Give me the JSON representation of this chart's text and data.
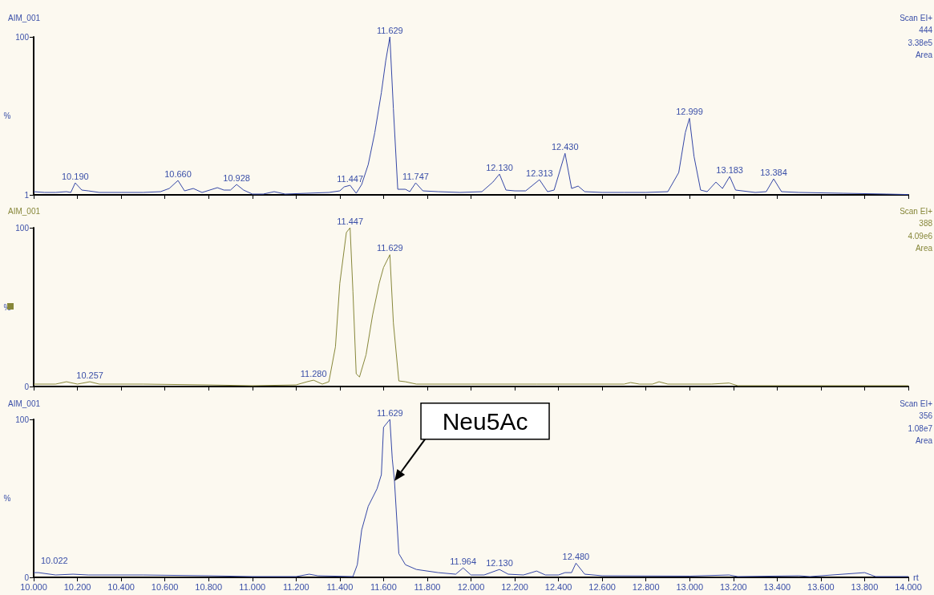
{
  "chart_data": [
    {
      "type": "line",
      "title": "AIM_001",
      "ylabel": "%",
      "annotations": [
        "Scan EI+",
        "444",
        "3.38e5",
        "Area",
        {
          "text": "10.190",
          "x": 10.19,
          "y": 8.5
        },
        {
          "text": "10.660",
          "x": 10.66,
          "y": 10
        },
        {
          "text": "10.928",
          "x": 10.928,
          "y": 7.5
        },
        {
          "text": "11.447",
          "x": 11.447,
          "y": 7
        },
        {
          "text": "11.629",
          "x": 11.629,
          "y": 100
        },
        {
          "text": "11.747",
          "x": 11.747,
          "y": 8.5
        },
        {
          "text": "12.130",
          "x": 12.13,
          "y": 14
        },
        {
          "text": "12.313",
          "x": 12.313,
          "y": 10.5
        },
        {
          "text": "12.430",
          "x": 12.43,
          "y": 27
        },
        {
          "text": "12.999",
          "x": 12.999,
          "y": 49
        },
        {
          "text": "13.183",
          "x": 13.183,
          "y": 12.5
        },
        {
          "text": "13.384",
          "x": 13.384,
          "y": 11
        }
      ],
      "xlim": [
        10,
        14
      ],
      "xticks": [
        {
          "value": 10,
          "label": null
        },
        {
          "value": 10.2,
          "label": null
        },
        {
          "value": 10.4,
          "label": null
        },
        {
          "value": 10.6,
          "label": null
        },
        {
          "value": 10.8,
          "label": null
        },
        {
          "value": 11,
          "label": null
        },
        {
          "value": 11.2,
          "label": null
        },
        {
          "value": 11.4,
          "label": null
        },
        {
          "value": 11.6,
          "label": null
        },
        {
          "value": 11.8,
          "label": null
        },
        {
          "value": 12,
          "label": null
        },
        {
          "value": 12.2,
          "label": null
        },
        {
          "value": 12.4,
          "label": null
        },
        {
          "value": 12.6,
          "label": null
        },
        {
          "value": 12.8,
          "label": null
        },
        {
          "value": 13,
          "label": null
        },
        {
          "value": 13.2,
          "label": null
        },
        {
          "value": 13.4,
          "label": null
        },
        {
          "value": 13.6,
          "label": null
        },
        {
          "value": 13.8,
          "label": null
        },
        {
          "value": 14,
          "label": null
        }
      ],
      "ylim": [
        1,
        100
      ],
      "yticks": [
        1,
        100
      ],
      "tick_labels": "y",
      "series": [
        {
          "color": "#3547a6",
          "x": [
            10.0,
            10.05,
            10.1,
            10.15,
            10.17,
            10.19,
            10.22,
            10.25,
            10.3,
            10.4,
            10.5,
            10.58,
            10.62,
            10.66,
            10.69,
            10.73,
            10.77,
            10.84,
            10.87,
            10.9,
            10.928,
            10.96,
            11.0,
            11.05,
            11.1,
            11.15,
            11.25,
            11.35,
            11.4,
            11.42,
            11.447,
            11.475,
            11.5,
            11.53,
            11.56,
            11.59,
            11.61,
            11.629,
            11.645,
            11.665,
            11.7,
            11.72,
            11.747,
            11.78,
            11.85,
            11.95,
            12.05,
            12.1,
            12.13,
            12.16,
            12.2,
            12.25,
            12.313,
            12.35,
            12.38,
            12.43,
            12.46,
            12.49,
            12.52,
            12.6,
            12.7,
            12.8,
            12.9,
            12.95,
            12.98,
            12.999,
            13.02,
            13.05,
            13.08,
            13.12,
            13.15,
            13.183,
            13.21,
            13.3,
            13.35,
            13.384,
            13.42,
            13.5,
            13.7,
            13.9,
            14.0
          ],
          "values": [
            3,
            2.5,
            2.5,
            3,
            2.5,
            8.5,
            4,
            3.5,
            2.5,
            2.5,
            2.5,
            3,
            5,
            10,
            3.5,
            5,
            2.5,
            5.5,
            4,
            4,
            7.5,
            4,
            1.5,
            1.5,
            3,
            1.5,
            2,
            2.5,
            3.5,
            6,
            7,
            2,
            7.5,
            20,
            40,
            65,
            85,
            100,
            55,
            4.5,
            4.5,
            3,
            8.5,
            3.5,
            3,
            2.5,
            3,
            9,
            14,
            4,
            3.5,
            3.5,
            10.5,
            3,
            4,
            27,
            5,
            6.5,
            3,
            2.5,
            2.5,
            2.5,
            3,
            15,
            40,
            49,
            25,
            4,
            3,
            9,
            5,
            12.5,
            4,
            2.5,
            3,
            11,
            3,
            2.5,
            2,
            1.5,
            1.2
          ]
        }
      ]
    },
    {
      "type": "line",
      "title": "AIM_001",
      "ylabel": "%",
      "annotations": [
        "Scan EI+",
        "388",
        "4.09e6",
        "Area",
        {
          "text": "10.257",
          "x": 10.257,
          "y": 3
        },
        {
          "text": "11.280",
          "x": 11.28,
          "y": 4
        },
        {
          "text": "11.447",
          "x": 11.447,
          "y": 100
        },
        {
          "text": "11.629",
          "x": 11.629,
          "y": 83
        }
      ],
      "xlim": [
        10,
        14
      ],
      "xticks": [
        {
          "value": 10,
          "label": null
        },
        {
          "value": 10.2,
          "label": null
        },
        {
          "value": 10.4,
          "label": null
        },
        {
          "value": 10.6,
          "label": null
        },
        {
          "value": 10.8,
          "label": null
        },
        {
          "value": 11,
          "label": null
        },
        {
          "value": 11.2,
          "label": null
        },
        {
          "value": 11.4,
          "label": null
        },
        {
          "value": 11.6,
          "label": null
        },
        {
          "value": 11.8,
          "label": null
        },
        {
          "value": 12,
          "label": null
        },
        {
          "value": 12.2,
          "label": null
        },
        {
          "value": 12.4,
          "label": null
        },
        {
          "value": 12.6,
          "label": null
        },
        {
          "value": 12.8,
          "label": null
        },
        {
          "value": 13,
          "label": null
        },
        {
          "value": 13.2,
          "label": null
        },
        {
          "value": 13.4,
          "label": null
        },
        {
          "value": 13.6,
          "label": null
        },
        {
          "value": 13.8,
          "label": null
        },
        {
          "value": 14,
          "label": null
        }
      ],
      "ylim": [
        0,
        100
      ],
      "yticks": [
        0,
        100
      ],
      "tick_labels": "y",
      "series": [
        {
          "color": "#87873a",
          "x": [
            10.0,
            10.1,
            10.15,
            10.2,
            10.257,
            10.3,
            10.5,
            10.8,
            11.0,
            11.2,
            11.25,
            11.28,
            11.32,
            11.35,
            11.38,
            11.4,
            11.43,
            11.447,
            11.46,
            11.475,
            11.49,
            11.52,
            11.55,
            11.58,
            11.6,
            11.629,
            11.645,
            11.67,
            11.7,
            11.75,
            12.0,
            12.3,
            12.5,
            12.7,
            12.73,
            12.77,
            12.83,
            12.86,
            12.9,
            13.1,
            13.18,
            13.22,
            14.0
          ],
          "values": [
            1.5,
            1.5,
            3,
            1.5,
            3,
            1.5,
            1.5,
            1,
            0.5,
            1,
            3,
            4,
            1.5,
            3,
            25,
            65,
            97,
            100,
            60,
            8,
            6,
            20,
            45,
            65,
            75,
            83,
            40,
            3.5,
            3,
            1.5,
            1.5,
            1.5,
            1.5,
            1.5,
            2.5,
            1.5,
            1.5,
            3,
            1.5,
            1.5,
            2.2,
            0.5,
            0.5
          ]
        }
      ]
    },
    {
      "type": "line",
      "title": "AIM_001",
      "ylabel": "%",
      "xlabel": "rt",
      "annotations": [
        "Scan EI+",
        "356",
        "1.08e7",
        "Area",
        {
          "text": "10.022",
          "x": 10.022,
          "y": 3
        },
        {
          "text": "11.629",
          "x": 11.629,
          "y": 100
        },
        {
          "text": "11.964",
          "x": 11.964,
          "y": 6
        },
        {
          "text": "12.130",
          "x": 12.13,
          "y": 5
        },
        {
          "text": "12.480",
          "x": 12.48,
          "y": 9
        },
        {
          "text": "Neu5Ac",
          "x": 11.65,
          "y": 61
        }
      ],
      "xlim": [
        10,
        14
      ],
      "xticks": [
        {
          "value": 10,
          "label": "10.000"
        },
        {
          "value": 10.2,
          "label": "10.200"
        },
        {
          "value": 10.4,
          "label": "10.400"
        },
        {
          "value": 10.6,
          "label": "10.600"
        },
        {
          "value": 10.8,
          "label": "10.800"
        },
        {
          "value": 11,
          "label": "11.000"
        },
        {
          "value": 11.2,
          "label": "11.200"
        },
        {
          "value": 11.4,
          "label": "11.400"
        },
        {
          "value": 11.6,
          "label": "11.600"
        },
        {
          "value": 11.8,
          "label": "11.800"
        },
        {
          "value": 12,
          "label": "12.000"
        },
        {
          "value": 12.2,
          "label": "12.200"
        },
        {
          "value": 12.4,
          "label": "12.400"
        },
        {
          "value": 12.6,
          "label": "12.600"
        },
        {
          "value": 12.8,
          "label": "12.800"
        },
        {
          "value": 13,
          "label": "13.000"
        },
        {
          "value": 13.2,
          "label": "13.200"
        },
        {
          "value": 13.4,
          "label": "13.400"
        },
        {
          "value": 13.6,
          "label": "13.600"
        },
        {
          "value": 13.8,
          "label": "13.800"
        },
        {
          "value": 14,
          "label": "14.000"
        }
      ],
      "ylim": [
        0,
        100
      ],
      "yticks": [
        0,
        100
      ],
      "series": [
        {
          "color": "#3547a6",
          "x": [
            10.0,
            10.022,
            10.1,
            10.18,
            10.25,
            10.5,
            10.8,
            11.0,
            11.2,
            11.26,
            11.3,
            11.46,
            11.48,
            11.5,
            11.53,
            11.57,
            11.59,
            11.6,
            11.629,
            11.64,
            11.65,
            11.67,
            11.7,
            11.75,
            11.85,
            11.93,
            11.964,
            12.0,
            12.06,
            12.13,
            12.17,
            12.24,
            12.3,
            12.34,
            12.4,
            12.43,
            12.46,
            12.48,
            12.52,
            12.6,
            13.0,
            13.18,
            13.22,
            13.5,
            13.55,
            13.8,
            13.85,
            14.0
          ],
          "values": [
            3,
            3,
            1.5,
            2,
            1.5,
            1.5,
            1,
            0.5,
            0.5,
            2,
            1,
            0.5,
            8,
            30,
            45,
            56,
            65,
            95,
            100,
            75,
            61,
            15,
            8,
            5,
            3,
            2,
            6,
            1.5,
            1.5,
            5,
            2,
            1.5,
            4,
            1.5,
            1.5,
            3,
            3,
            9,
            2,
            1,
            0.8,
            1.5,
            0.5,
            1,
            0.5,
            3,
            0.5,
            0.5
          ]
        }
      ]
    }
  ]
}
